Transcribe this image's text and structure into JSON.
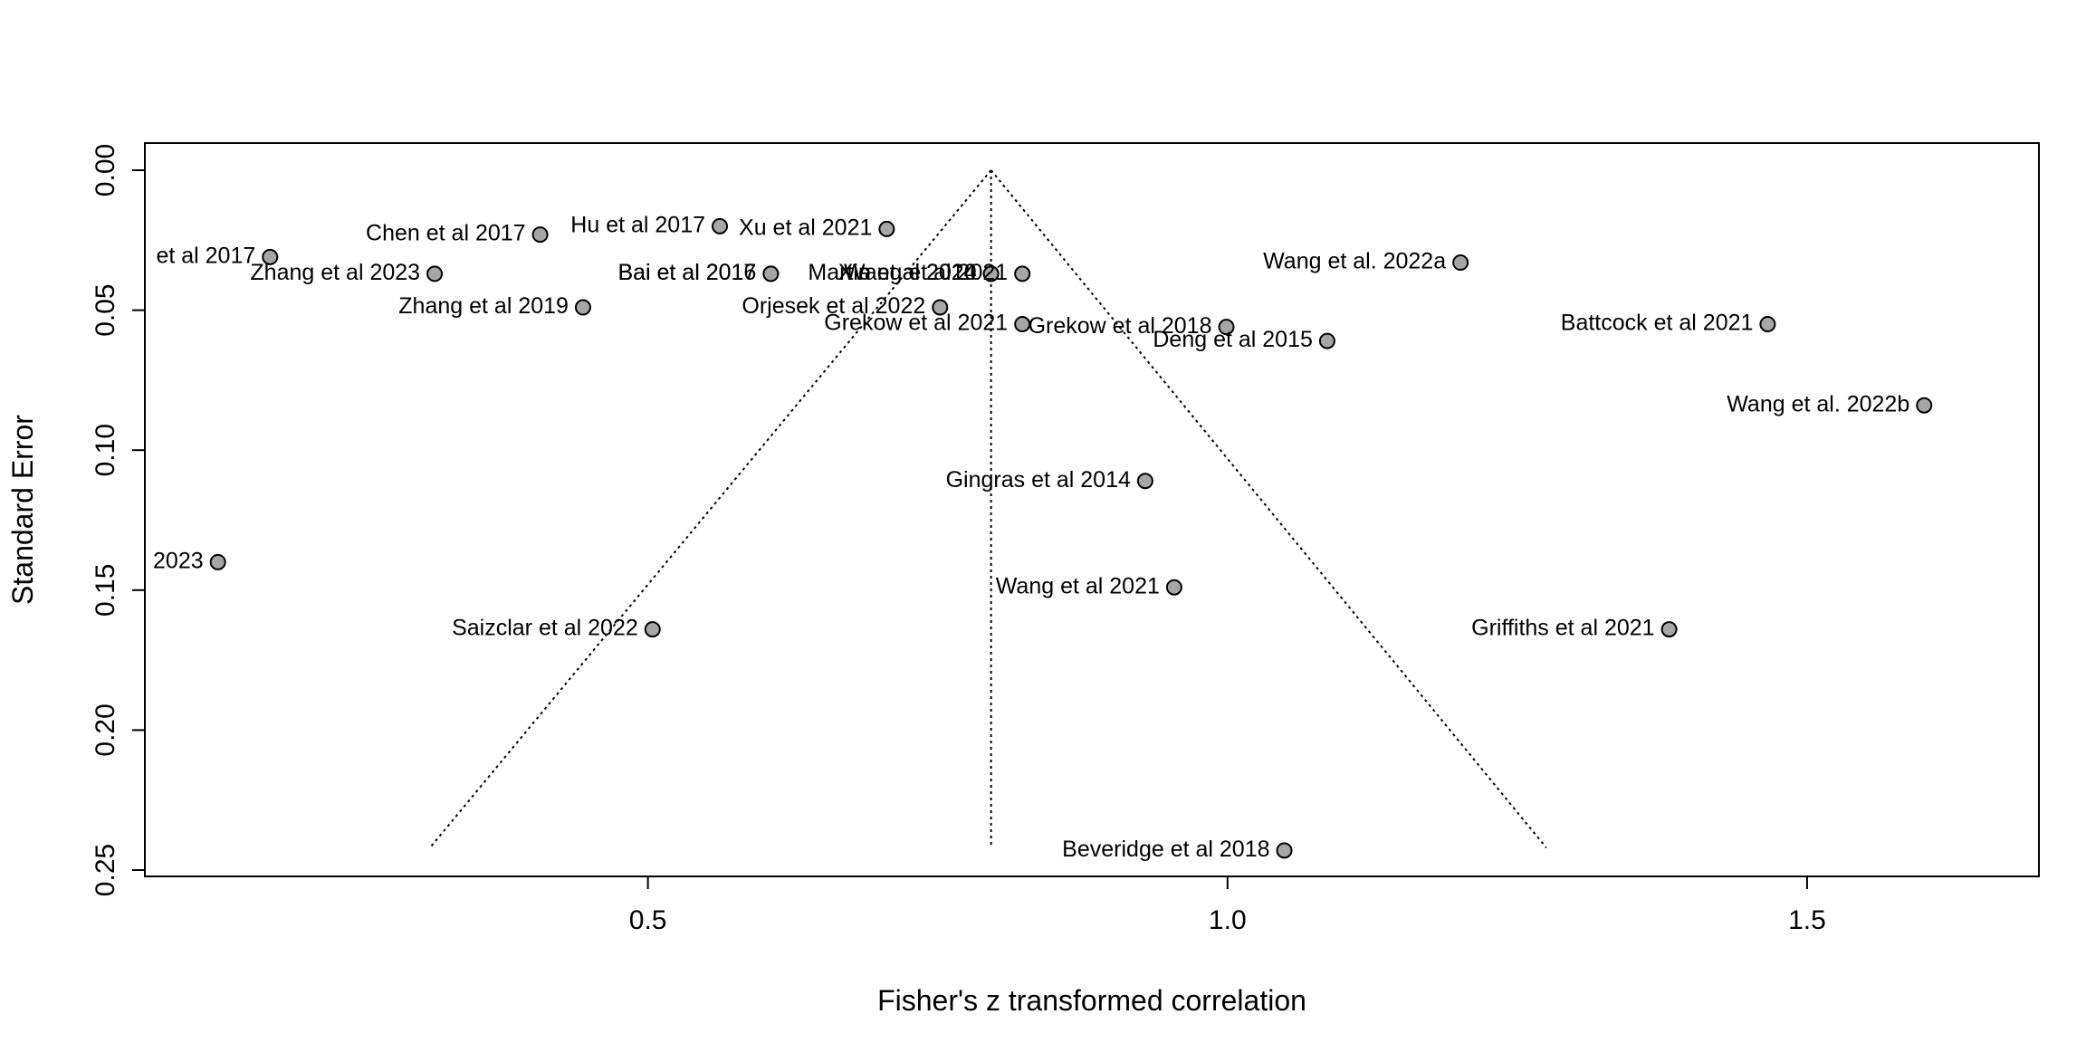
{
  "chart_data": {
    "type": "scatter",
    "xlabel": "Fisher's z transformed correlation",
    "ylabel": "Standard Error",
    "xlim": [
      0.066,
      1.7
    ],
    "ylim": [
      0.25,
      0.0
    ],
    "x_ticks": [
      0.5,
      1.0,
      1.5
    ],
    "x_tick_labels": [
      "0.5",
      "1.0",
      "1.5"
    ],
    "y_ticks": [
      0.0,
      0.05,
      0.1,
      0.15,
      0.2,
      0.25
    ],
    "y_tick_labels": [
      "0.00",
      "0.05",
      "0.10",
      "0.15",
      "0.20",
      "0.25"
    ],
    "grid": false,
    "point_color": "#a6a6a6",
    "funnel": {
      "center": 0.796,
      "se_max": 0.242,
      "left_bottom_x": 0.312,
      "right_bottom_x": 1.275
    },
    "points": [
      {
        "label": "Hu et al 2017",
        "x": 0.562,
        "y": 0.02
      },
      {
        "label": "Xu et al 2021",
        "x": 0.706,
        "y": 0.021
      },
      {
        "label": "Chen et al 2017",
        "x": 0.407,
        "y": 0.023
      },
      {
        "label": "et al 2017",
        "x": 0.174,
        "y": 0.031
      },
      {
        "label": "Wang et al. 2022a",
        "x": 1.201,
        "y": 0.033
      },
      {
        "label": "Zhang et al 2023",
        "x": 0.316,
        "y": 0.037
      },
      {
        "label": "Bai et al 2017",
        "x": 0.606,
        "y": 0.037
      },
      {
        "label": "Bai et al 2016",
        "x": 0.606,
        "y": 0.037
      },
      {
        "label": "Xie et al 2020",
        "x": 0.796,
        "y": 0.037
      },
      {
        "label": "Martin et al 2014",
        "x": 0.796,
        "y": 0.037
      },
      {
        "label": "Wang et al 2021",
        "x": 0.823,
        "y": 0.037
      },
      {
        "label": "Zhang et al 2019",
        "x": 0.444,
        "y": 0.049
      },
      {
        "label": "Orjesek et al 2022",
        "x": 0.752,
        "y": 0.049
      },
      {
        "label": "Battcock et al 2021",
        "x": 1.466,
        "y": 0.055
      },
      {
        "label": "Grekow et al 2021",
        "x": 0.823,
        "y": 0.055
      },
      {
        "label": "Grekow et al 2018",
        "x": 0.999,
        "y": 0.056
      },
      {
        "label": "Deng et al 2015",
        "x": 1.086,
        "y": 0.061
      },
      {
        "label": "Wang et al. 2022b",
        "x": 1.601,
        "y": 0.084
      },
      {
        "label": "Gingras et al 2014",
        "x": 0.929,
        "y": 0.111
      },
      {
        "label": "2023",
        "x": 0.129,
        "y": 0.14
      },
      {
        "label": "Wang et al 2021",
        "x": 0.954,
        "y": 0.149
      },
      {
        "label": "Saizclar et al 2022",
        "x": 0.504,
        "y": 0.164
      },
      {
        "label": "Griffiths et al 2021",
        "x": 1.381,
        "y": 0.164
      },
      {
        "label": "Beveridge et al 2018",
        "x": 1.049,
        "y": 0.243
      }
    ]
  }
}
